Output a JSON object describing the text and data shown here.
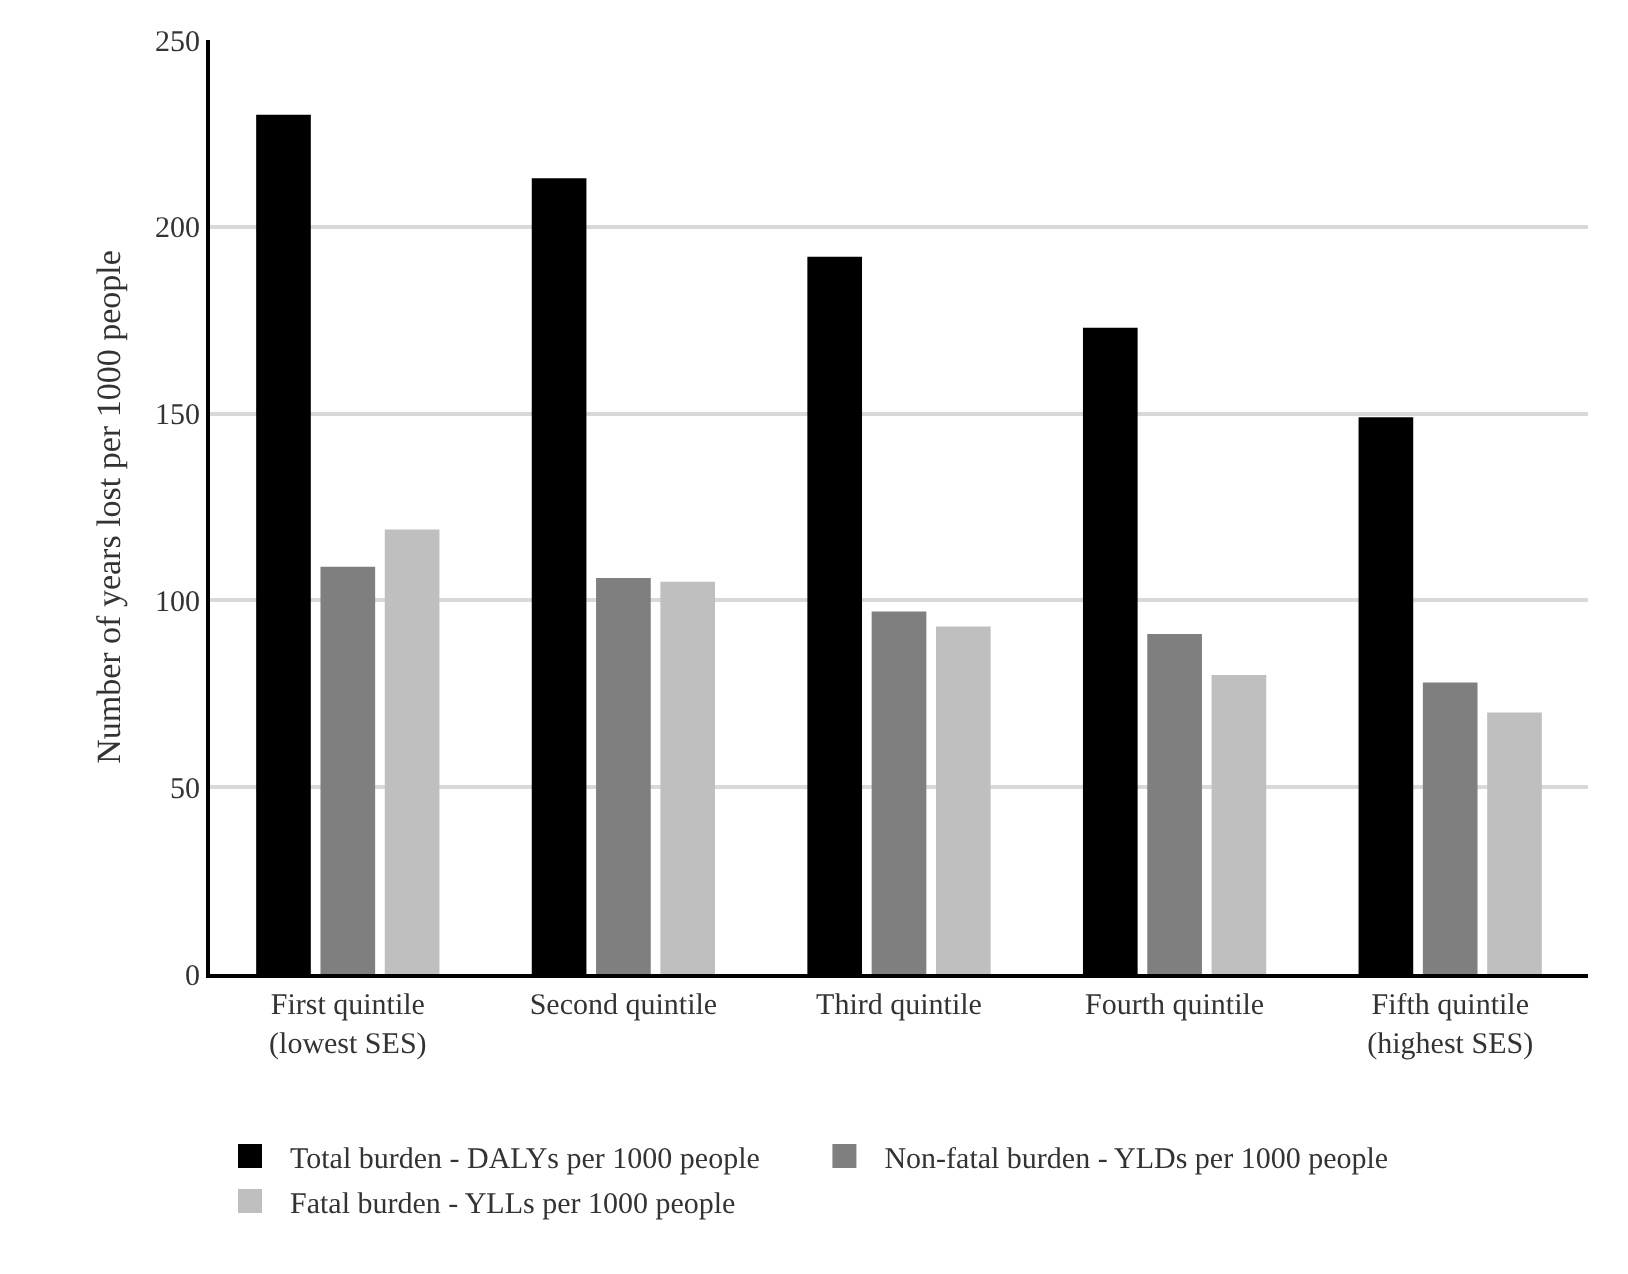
{
  "chart_data": {
    "type": "bar",
    "ylabel": "Number of years lost per 1000 people",
    "categories": [
      "First quintile\n(lowest SES)",
      "Second quintile",
      "Third quintile",
      "Fourth quintile",
      "Fifth quintile\n(highest SES)"
    ],
    "series": [
      {
        "name": "Total burden - DALYs per 1000 people",
        "color": "#000000",
        "values": [
          230,
          213,
          192,
          173,
          149
        ]
      },
      {
        "name": "Non-fatal burden - YLDs per 1000 people",
        "color": "#7f7f7f",
        "values": [
          109,
          106,
          97,
          91,
          78
        ]
      },
      {
        "name": "Fatal burden - YLLs per 1000 people",
        "color": "#bfbfbf",
        "values": [
          119,
          105,
          93,
          80,
          70
        ]
      }
    ],
    "ylim": [
      0,
      250
    ],
    "yticks": [
      0,
      50,
      100,
      150,
      200,
      250
    ],
    "grid": "y",
    "legend": "bottom"
  }
}
